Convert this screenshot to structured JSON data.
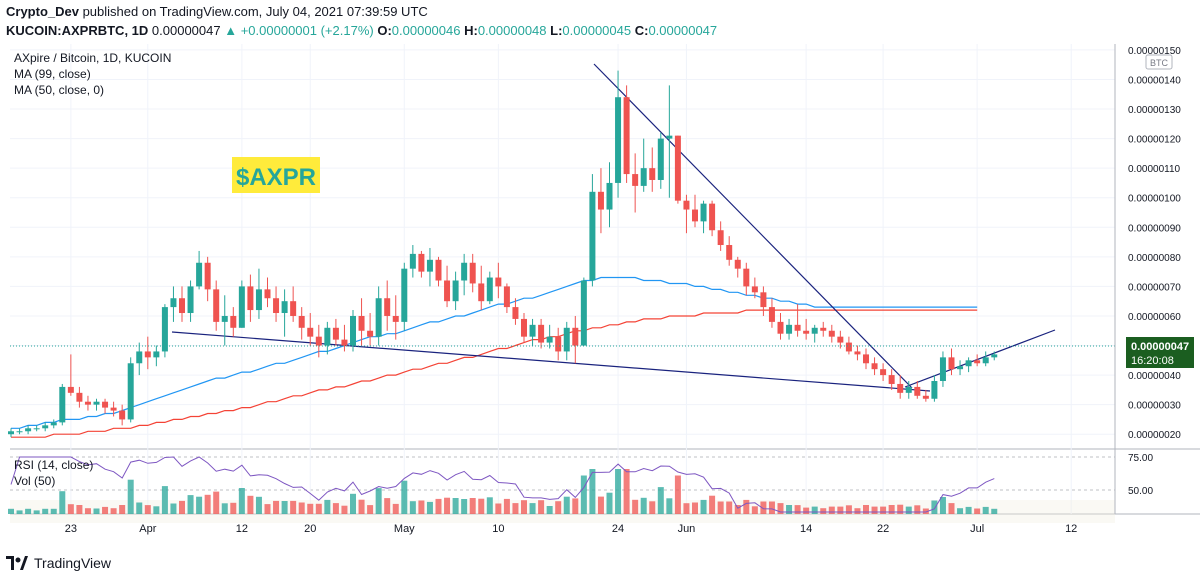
{
  "header": {
    "author": "Crypto_Dev",
    "published_text": " published on TradingView.com, July 04, 2021 07:39:59 UTC",
    "symbol": "KUCOIN:AXPRBTC, 1D",
    "last": "0.00000047",
    "change": "▲ +0.00000001 (+2.17%)",
    "o_label": "O:",
    "o": "0.00000046",
    "h_label": "H:",
    "h": "0.00000048",
    "l_label": "L:",
    "l": "0.00000045",
    "c_label": "C:",
    "c": "0.00000047"
  },
  "legend": {
    "title": "AXpire / Bitcoin, 1D, KUCOIN",
    "ma1": "MA (99, close)",
    "ma2": "MA (50, close, 0)"
  },
  "ticker_label": "$AXPR",
  "price_badge": {
    "value": "0.00000047",
    "countdown": "16:20:08"
  },
  "currency_label": "BTC",
  "rsi_label": "RSI (14, close)",
  "vol_label": "Vol (50)",
  "footer": {
    "brand": "TradingView"
  },
  "colors": {
    "up": "#26a69a",
    "down": "#ef5350",
    "ma99": "#f44336",
    "ma50": "#2196f3",
    "trendline": "#1a237e",
    "rsi": "#7e57c2",
    "ticker_bg": "#ffeb3b",
    "ticker_text": "#26a69a",
    "badge": "#1b5e20"
  },
  "chart_data": {
    "type": "candlestick",
    "x_ticks": [
      "23",
      "Apr",
      "12",
      "20",
      "May",
      "10",
      "24",
      "Jun",
      "14",
      "22",
      "Jul",
      "12"
    ],
    "y_ticks": [
      "0.00000150",
      "0.00000140",
      "0.00000130",
      "0.00000120",
      "0.00000110",
      "0.00000100",
      "0.00000090",
      "0.00000080",
      "0.00000070",
      "0.00000060",
      "0.00000050",
      "0.00000040",
      "0.00000030",
      "0.00000020"
    ],
    "ylim": [
      1.5e-07,
      1.52e-06
    ],
    "rsi_ticks": [
      "75.00",
      "50.00"
    ],
    "candles": [
      [
        20,
        22,
        19,
        21
      ],
      [
        21,
        22,
        20,
        21
      ],
      [
        21,
        23,
        20,
        22
      ],
      [
        22,
        23,
        21,
        22
      ],
      [
        22,
        24,
        21,
        23
      ],
      [
        23,
        25,
        22,
        24
      ],
      [
        24,
        37,
        23,
        36
      ],
      [
        36,
        47,
        33,
        34
      ],
      [
        34,
        36,
        29,
        31
      ],
      [
        31,
        33,
        28,
        30
      ],
      [
        30,
        32,
        28,
        31
      ],
      [
        31,
        32,
        27,
        29
      ],
      [
        29,
        31,
        26,
        28
      ],
      [
        28,
        30,
        23,
        25
      ],
      [
        25,
        46,
        24,
        44
      ],
      [
        44,
        51,
        40,
        48
      ],
      [
        48,
        53,
        42,
        46
      ],
      [
        46,
        50,
        43,
        48
      ],
      [
        48,
        64,
        46,
        63
      ],
      [
        63,
        70,
        58,
        66
      ],
      [
        66,
        70,
        58,
        61
      ],
      [
        61,
        72,
        58,
        70
      ],
      [
        70,
        82,
        69,
        78
      ],
      [
        78,
        80,
        65,
        69
      ],
      [
        69,
        72,
        55,
        58
      ],
      [
        58,
        67,
        50,
        60
      ],
      [
        60,
        63,
        53,
        56
      ],
      [
        56,
        72,
        56,
        70
      ],
      [
        70,
        74,
        58,
        62
      ],
      [
        62,
        76,
        59,
        69
      ],
      [
        69,
        73,
        63,
        66
      ],
      [
        66,
        70,
        58,
        61
      ],
      [
        61,
        69,
        53,
        65
      ],
      [
        65,
        70,
        58,
        60
      ],
      [
        60,
        63,
        52,
        56
      ],
      [
        56,
        61,
        50,
        53
      ],
      [
        53,
        57,
        46,
        50
      ],
      [
        50,
        58,
        47,
        56
      ],
      [
        56,
        59,
        50,
        52
      ],
      [
        52,
        57,
        48,
        50
      ],
      [
        50,
        62,
        48,
        60
      ],
      [
        60,
        66,
        50,
        55
      ],
      [
        55,
        61,
        50,
        53
      ],
      [
        53,
        70,
        50,
        66
      ],
      [
        66,
        72,
        55,
        60
      ],
      [
        60,
        67,
        52,
        58
      ],
      [
        58,
        78,
        55,
        76
      ],
      [
        76,
        84,
        73,
        81
      ],
      [
        81,
        82,
        73,
        75
      ],
      [
        75,
        83,
        70,
        79
      ],
      [
        79,
        80,
        70,
        72
      ],
      [
        72,
        77,
        63,
        65
      ],
      [
        65,
        75,
        62,
        72
      ],
      [
        72,
        81,
        67,
        78
      ],
      [
        78,
        81,
        68,
        71
      ],
      [
        71,
        77,
        62,
        65
      ],
      [
        65,
        75,
        64,
        73
      ],
      [
        73,
        78,
        66,
        70
      ],
      [
        70,
        71,
        61,
        63
      ],
      [
        63,
        66,
        57,
        59
      ],
      [
        59,
        61,
        51,
        53
      ],
      [
        53,
        59,
        50,
        57
      ],
      [
        57,
        59,
        49,
        51
      ],
      [
        51,
        57,
        49,
        53
      ],
      [
        53,
        56,
        45,
        48
      ],
      [
        48,
        58,
        45,
        56
      ],
      [
        56,
        60,
        44,
        50
      ],
      [
        50,
        73,
        50,
        72
      ],
      [
        72,
        108,
        70,
        102
      ],
      [
        102,
        110,
        88,
        96
      ],
      [
        96,
        112,
        90,
        105
      ],
      [
        105,
        143,
        100,
        134
      ],
      [
        134,
        138,
        105,
        108
      ],
      [
        108,
        115,
        95,
        104
      ],
      [
        104,
        120,
        102,
        110
      ],
      [
        110,
        117,
        102,
        106
      ],
      [
        106,
        122,
        103,
        120
      ],
      [
        120,
        138,
        100,
        121
      ],
      [
        121,
        121,
        98,
        99
      ],
      [
        99,
        101,
        88,
        96
      ],
      [
        96,
        101,
        90,
        92
      ],
      [
        92,
        99,
        88,
        98
      ],
      [
        98,
        99,
        87,
        89
      ],
      [
        89,
        92,
        82,
        84
      ],
      [
        84,
        87,
        77,
        79
      ],
      [
        79,
        80,
        73,
        76
      ],
      [
        76,
        78,
        67,
        70
      ],
      [
        70,
        73,
        66,
        68
      ],
      [
        68,
        70,
        60,
        63
      ],
      [
        63,
        66,
        56,
        58
      ],
      [
        58,
        61,
        52,
        54
      ],
      [
        54,
        59,
        52,
        57
      ],
      [
        57,
        64,
        53,
        55
      ],
      [
        55,
        59,
        52,
        54
      ],
      [
        54,
        57,
        51,
        56
      ],
      [
        56,
        58,
        53,
        55
      ],
      [
        55,
        57,
        51,
        53
      ],
      [
        53,
        55,
        49,
        51
      ],
      [
        51,
        53,
        47,
        48
      ],
      [
        48,
        50,
        45,
        47
      ],
      [
        47,
        49,
        42,
        44
      ],
      [
        44,
        46,
        40,
        42
      ],
      [
        42,
        44,
        38,
        40
      ],
      [
        40,
        42,
        35,
        37
      ],
      [
        37,
        40,
        32,
        34
      ],
      [
        34,
        38,
        32,
        36
      ],
      [
        36,
        38,
        32,
        33
      ],
      [
        33,
        35,
        31,
        32
      ],
      [
        32,
        40,
        31,
        38
      ],
      [
        38,
        48,
        36,
        46
      ],
      [
        46,
        49,
        40,
        42
      ],
      [
        42,
        45,
        40,
        43
      ],
      [
        43,
        46,
        41,
        45
      ],
      [
        45,
        47,
        43,
        44
      ],
      [
        44,
        48,
        43,
        46
      ],
      [
        46,
        48,
        45,
        47
      ]
    ],
    "ma50": [
      22,
      22,
      23,
      23,
      24,
      24,
      25,
      25,
      25,
      26,
      26,
      27,
      27,
      28,
      29,
      30,
      31,
      32,
      33,
      34,
      35,
      36,
      37,
      38,
      39,
      39,
      40,
      41,
      41,
      42,
      43,
      44,
      44,
      45,
      46,
      47,
      48,
      48,
      49,
      50,
      51,
      52,
      53,
      53,
      54,
      54,
      55,
      56,
      57,
      58,
      58,
      59,
      60,
      60,
      61,
      62,
      63,
      64,
      64,
      65,
      66,
      66,
      67,
      68,
      69,
      70,
      71,
      72,
      72,
      73,
      73,
      73,
      73,
      73,
      72,
      72,
      72,
      71,
      71,
      71,
      70,
      70,
      69,
      69,
      68,
      68,
      67,
      67,
      66,
      66,
      65,
      65,
      64,
      64,
      63,
      63,
      63,
      63,
      63,
      63,
      63,
      63,
      63,
      63,
      63,
      63,
      63,
      63,
      63,
      63,
      63,
      63,
      63,
      63
    ],
    "ma99": [
      19,
      19,
      19,
      19,
      19,
      20,
      20,
      20,
      20,
      21,
      21,
      21,
      22,
      22,
      22,
      23,
      23,
      24,
      24,
      25,
      25,
      26,
      26,
      27,
      27,
      28,
      28,
      29,
      29,
      30,
      31,
      31,
      32,
      33,
      33,
      34,
      35,
      35,
      36,
      36,
      37,
      38,
      38,
      39,
      40,
      40,
      41,
      42,
      42,
      43,
      44,
      44,
      45,
      46,
      46,
      47,
      48,
      49,
      49,
      50,
      51,
      52,
      52,
      53,
      53,
      54,
      55,
      55,
      56,
      56,
      57,
      57,
      58,
      58,
      59,
      59,
      59,
      60,
      60,
      60,
      60,
      61,
      61,
      61,
      61,
      61,
      62,
      62,
      62,
      62,
      62,
      62,
      62,
      62,
      62,
      62,
      62,
      62,
      62,
      62,
      62,
      62,
      62,
      62,
      62,
      62,
      62,
      62,
      62,
      62,
      62,
      62,
      62,
      62
    ]
  }
}
